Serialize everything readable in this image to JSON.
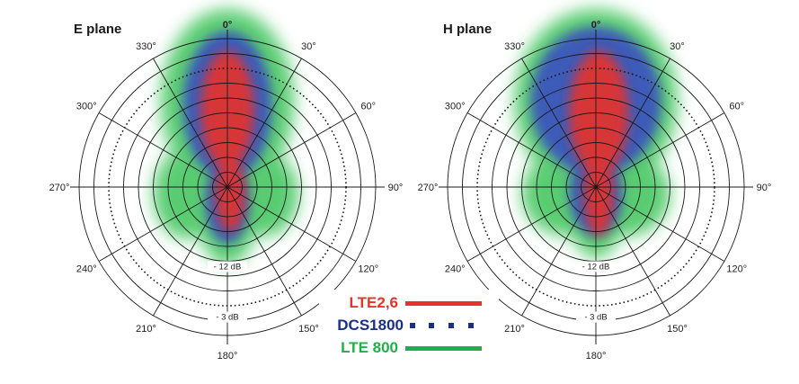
{
  "plots": [
    {
      "title": "E plane",
      "angles": [
        "0°",
        "30°",
        "60°",
        "90°",
        "120°",
        "150°",
        "180°",
        "210°",
        "240°",
        "270°",
        "300°",
        "330°"
      ],
      "db_labels": [
        "- 3 dB",
        "- 12 dB"
      ]
    },
    {
      "title": "H plane",
      "angles": [
        "0°",
        "30°",
        "60°",
        "90°",
        "120°",
        "150°",
        "180°",
        "210°",
        "240°",
        "270°",
        "300°",
        "330°"
      ],
      "db_labels": [
        "- 3 dB",
        "- 12 dB"
      ]
    }
  ],
  "legend": [
    {
      "label": "LTE2,6",
      "color": "#e8332a",
      "style": "solid"
    },
    {
      "label": "DCS1800",
      "color": "#1b2f8a",
      "style": "dotted"
    },
    {
      "label": "LTE 800",
      "color": "#1fb04a",
      "style": "solid"
    }
  ],
  "colors": {
    "grid": "#1a1a1a",
    "lte800_cloud": "#3cc45a",
    "dcs1800_cloud": "#3a4fc0",
    "lte26_cloud": "#e8332a"
  }
}
